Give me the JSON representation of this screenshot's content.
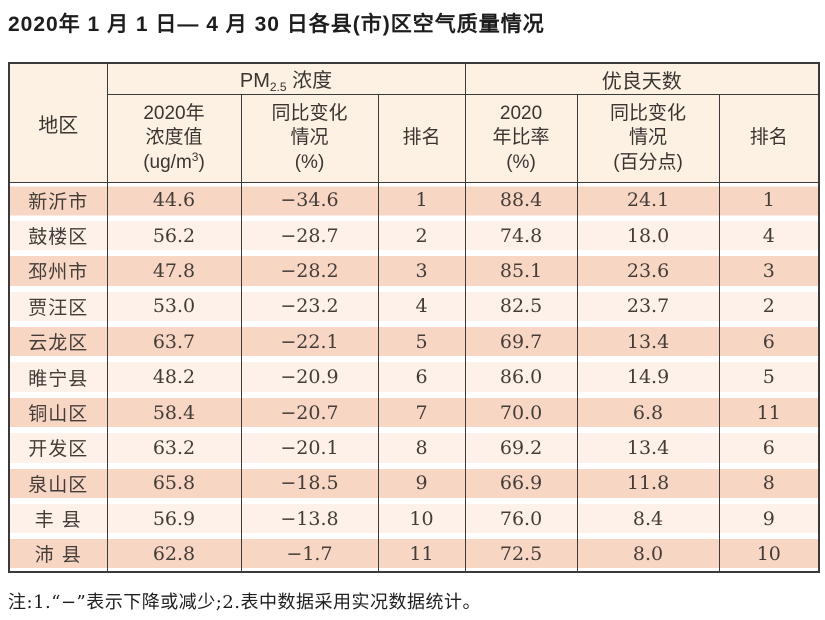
{
  "page_title": "2020年 1 月 1 日— 4 月 30 日各县(市)区空气质量情况",
  "colors": {
    "header_bg": "#fcf1e3",
    "row_salmon": "#f8d6c4",
    "row_light": "#fdf1ea",
    "border": "#3a3a3a",
    "text": "#433c37"
  },
  "table": {
    "region_header": "地区",
    "group_pm": {
      "prefix": "PM",
      "sub": "2.5",
      "suffix": " 浓度"
    },
    "group_days": "优良天数",
    "sub_headers": {
      "conc_l1": "2020年",
      "conc_l2": "浓度值",
      "conc_unit_pre": "(ug/m",
      "conc_unit_sup": "3",
      "conc_unit_post": ")",
      "pm_chg_l1": "同比变化",
      "pm_chg_l2": "情况",
      "pm_chg_l3": "(%)",
      "pm_rank": "排名",
      "ratio_l1": "2020",
      "ratio_l2": "年比率",
      "ratio_l3": "(%)",
      "days_chg_l1": "同比变化",
      "days_chg_l2": "情况",
      "days_chg_l3": "(百分点)",
      "days_rank": "排名"
    },
    "rows": [
      {
        "region": "新沂市",
        "pm_value": "44.6",
        "pm_change": "−34.6",
        "pm_rank": "1",
        "ratio": "88.4",
        "ratio_change": "24.1",
        "ratio_rank": "1"
      },
      {
        "region": "鼓楼区",
        "pm_value": "56.2",
        "pm_change": "−28.7",
        "pm_rank": "2",
        "ratio": "74.8",
        "ratio_change": "18.0",
        "ratio_rank": "4"
      },
      {
        "region": "邳州市",
        "pm_value": "47.8",
        "pm_change": "−28.2",
        "pm_rank": "3",
        "ratio": "85.1",
        "ratio_change": "23.6",
        "ratio_rank": "3"
      },
      {
        "region": "贾汪区",
        "pm_value": "53.0",
        "pm_change": "−23.2",
        "pm_rank": "4",
        "ratio": "82.5",
        "ratio_change": "23.7",
        "ratio_rank": "2"
      },
      {
        "region": "云龙区",
        "pm_value": "63.7",
        "pm_change": "−22.1",
        "pm_rank": "5",
        "ratio": "69.7",
        "ratio_change": "13.4",
        "ratio_rank": "6"
      },
      {
        "region": "睢宁县",
        "pm_value": "48.2",
        "pm_change": "−20.9",
        "pm_rank": "6",
        "ratio": "86.0",
        "ratio_change": "14.9",
        "ratio_rank": "5"
      },
      {
        "region": "铜山区",
        "pm_value": "58.4",
        "pm_change": "−20.7",
        "pm_rank": "7",
        "ratio": "70.0",
        "ratio_change": "6.8",
        "ratio_rank": "11"
      },
      {
        "region": "开发区",
        "pm_value": "63.2",
        "pm_change": "−20.1",
        "pm_rank": "8",
        "ratio": "69.2",
        "ratio_change": "13.4",
        "ratio_rank": "6"
      },
      {
        "region": "泉山区",
        "pm_value": "65.8",
        "pm_change": "−18.5",
        "pm_rank": "9",
        "ratio": "66.9",
        "ratio_change": "11.8",
        "ratio_rank": "8"
      },
      {
        "region": "丰 县",
        "pm_value": "56.9",
        "pm_change": "−13.8",
        "pm_rank": "10",
        "ratio": "76.0",
        "ratio_change": "8.4",
        "ratio_rank": "9"
      },
      {
        "region": "沛 县",
        "pm_value": "62.8",
        "pm_change": "−1.7",
        "pm_rank": "11",
        "ratio": "72.5",
        "ratio_change": "8.0",
        "ratio_rank": "10"
      }
    ]
  },
  "footnote": "注:1.“−”表示下降或减少;2.表中数据采用实况数据统计。"
}
